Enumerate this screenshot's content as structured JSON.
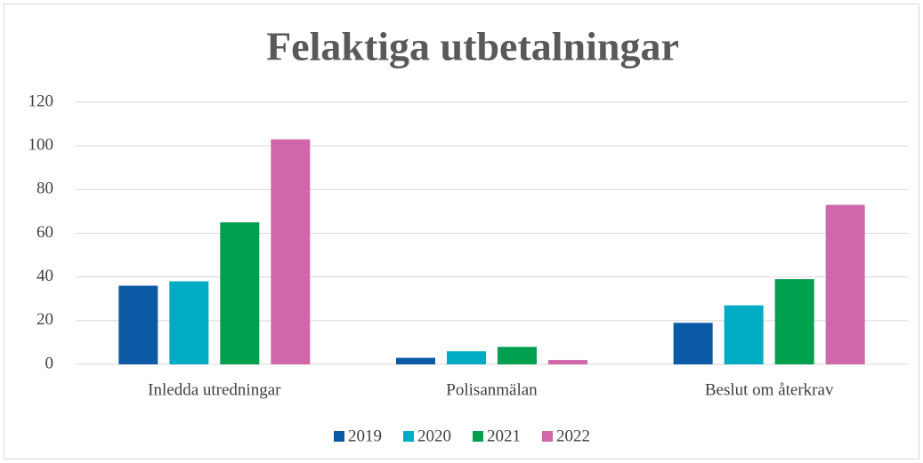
{
  "chart_data": {
    "type": "bar",
    "title": "Felaktiga utbetalningar",
    "categories": [
      "Inledda utredningar",
      "Polisanmälan",
      "Beslut om återkrav"
    ],
    "series": [
      {
        "name": "2019",
        "color": "#0b5aa6",
        "values": [
          36,
          3,
          19
        ]
      },
      {
        "name": "2020",
        "color": "#00acc4",
        "values": [
          38,
          6,
          27
        ]
      },
      {
        "name": "2021",
        "color": "#00a04f",
        "values": [
          65,
          8,
          39
        ]
      },
      {
        "name": "2022",
        "color": "#cf67a8",
        "values": [
          103,
          2,
          73
        ]
      }
    ],
    "ylim": [
      0,
      120
    ],
    "yticks": [
      0,
      20,
      40,
      60,
      80,
      100,
      120
    ],
    "grid": true,
    "legend": "bottom"
  }
}
